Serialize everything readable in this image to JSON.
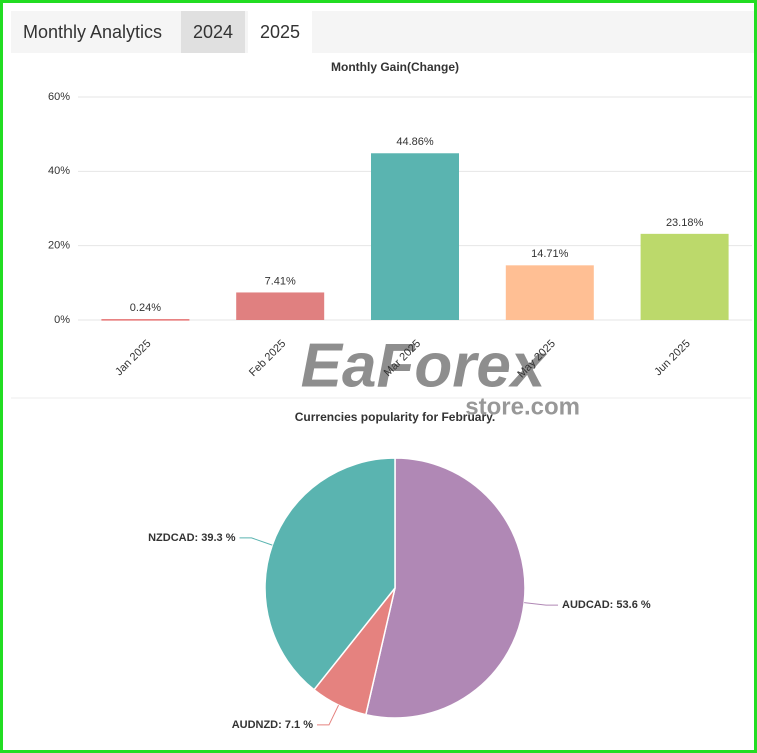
{
  "header": {
    "title": "Monthly Analytics",
    "tabs": [
      "2024",
      "2025"
    ]
  },
  "watermark": {
    "brand": "EaForex",
    "site": "store.com"
  },
  "chart_data": [
    {
      "type": "bar",
      "title": "Monthly Gain(Change)",
      "categories": [
        "Jan 2025",
        "Feb 2025",
        "Mar 2025",
        "May 2025",
        "Jun 2025"
      ],
      "values": [
        0.24,
        7.41,
        44.86,
        14.71,
        23.18
      ],
      "value_labels": [
        "0.24%",
        "7.41%",
        "44.86%",
        "14.71%",
        "23.18%"
      ],
      "colors": [
        "#e57373",
        "#e08080",
        "#5ab4b0",
        "#ffbf94",
        "#bcd96b"
      ],
      "ylim": [
        0,
        60
      ],
      "yticks": [
        {
          "value": 0,
          "label": "0%"
        },
        {
          "value": 20,
          "label": "20%"
        },
        {
          "value": 40,
          "label": "40%"
        },
        {
          "value": 60,
          "label": "60%"
        }
      ],
      "grid": true
    },
    {
      "type": "pie",
      "title": "Currencies popularity for February.",
      "categories": [
        "AUDCAD",
        "AUDNZD",
        "NZDCAD"
      ],
      "values": [
        53.6,
        7.1,
        39.3
      ],
      "value_labels": [
        "AUDCAD: 53.6 %",
        "AUDNZD: 7.1 %",
        "NZDCAD: 39.3 %"
      ],
      "colors": [
        "#b088b5",
        "#e5827f",
        "#5ab4b0"
      ]
    }
  ]
}
